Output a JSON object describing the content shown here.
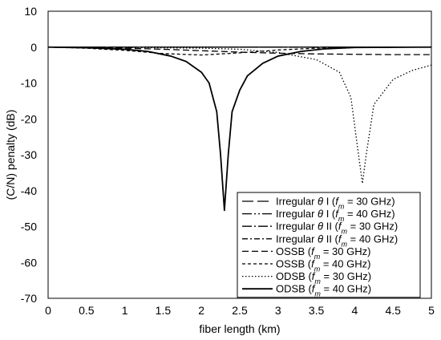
{
  "chart_data": {
    "type": "line",
    "xlabel": "fiber length (km)",
    "ylabel": "(C/N) penalty (dB)",
    "xlim": [
      0,
      5
    ],
    "ylim": [
      -70,
      10
    ],
    "xticks": [
      "0",
      "0.5",
      "1",
      "1.5",
      "2",
      "2.5",
      "3",
      "3.5",
      "4",
      "4.5",
      "5"
    ],
    "yticks": [
      "10",
      "0",
      "-10",
      "-20",
      "-30",
      "-40",
      "-50",
      "-60",
      "-70"
    ],
    "grid": false,
    "legend_position": "bottom-right",
    "series": [
      {
        "name_parts": [
          "Irregular ",
          "θ",
          " I (",
          "f",
          "m",
          " = 30 GHz)"
        ],
        "dash": "long-dash",
        "x": [
          0,
          0.5,
          1,
          1.5,
          2,
          2.5,
          3,
          3.5,
          4,
          4.5,
          5
        ],
        "y": [
          0,
          0,
          0,
          0,
          0,
          0,
          0,
          0,
          0,
          0,
          0
        ]
      },
      {
        "name_parts": [
          "Irregular ",
          "θ",
          " I (",
          "f",
          "m",
          " = 40 GHz)"
        ],
        "dash": "long-dash-dot-dot",
        "x": [
          0,
          0.5,
          1,
          1.5,
          2,
          2.5,
          3,
          3.5,
          4,
          4.5,
          5
        ],
        "y": [
          0,
          0,
          0,
          0,
          0,
          0,
          0,
          0,
          0,
          0,
          0
        ]
      },
      {
        "name_parts": [
          "Irregular ",
          "θ",
          " II (",
          "f",
          "m",
          " = 30 GHz)"
        ],
        "dash": "long-dash-dot",
        "x": [
          0,
          0.5,
          1,
          1.5,
          2,
          2.5,
          3,
          3.5,
          4,
          4.5,
          5
        ],
        "y": [
          0,
          0,
          0,
          0,
          0,
          0,
          0,
          0,
          0,
          0,
          0
        ]
      },
      {
        "name_parts": [
          "Irregular ",
          "θ",
          " II (",
          "f",
          "m",
          " = 40 GHz)"
        ],
        "dash": "dash-dot",
        "x": [
          0,
          0.5,
          1,
          1.5,
          2,
          2.5,
          3,
          3.5,
          4,
          4.5,
          5
        ],
        "y": [
          0,
          0,
          0,
          0,
          0,
          0,
          0,
          0,
          0,
          0,
          0
        ]
      },
      {
        "name_parts": [
          "OSSB (",
          "f",
          "m",
          " = 30 GHz)"
        ],
        "dash": "dash",
        "x": [
          0,
          0.5,
          1,
          1.5,
          2,
          2.5,
          3,
          3.5,
          4,
          4.5,
          5
        ],
        "y": [
          0,
          -0.1,
          -0.3,
          -0.6,
          -1.0,
          -1.4,
          -1.7,
          -1.9,
          -2.0,
          -2.1,
          -2.1
        ]
      },
      {
        "name_parts": [
          "OSSB (",
          "f",
          "m",
          " = 40 GHz)"
        ],
        "dash": "short-dash",
        "x": [
          0,
          0.5,
          1,
          1.5,
          2,
          2.5,
          3,
          3.5,
          4,
          4.5,
          5
        ],
        "y": [
          0,
          -0.3,
          -0.9,
          -1.8,
          -2.2,
          -1.6,
          -0.8,
          -0.3,
          -0.1,
          0,
          0
        ]
      },
      {
        "name_parts": [
          "ODSB (",
          "f",
          "m",
          " = 30 GHz)"
        ],
        "dash": "dot",
        "x": [
          0,
          1,
          2,
          2.5,
          3,
          3.5,
          3.8,
          3.95,
          4.05,
          4.1,
          4.15,
          4.25,
          4.5,
          4.75,
          5
        ],
        "y": [
          0,
          -0.1,
          -0.3,
          -0.6,
          -1.5,
          -3.5,
          -7,
          -14,
          -30,
          -38,
          -30,
          -16,
          -9,
          -6.5,
          -5
        ]
      },
      {
        "name_parts": [
          "ODSB (",
          "f",
          "m",
          " = 40 GHz)"
        ],
        "dash": "solid",
        "x": [
          0,
          0.5,
          1,
          1.3,
          1.6,
          1.8,
          2.0,
          2.1,
          2.2,
          2.25,
          2.3,
          2.35,
          2.4,
          2.5,
          2.6,
          2.8,
          3.0,
          3.3,
          3.6,
          4,
          5
        ],
        "y": [
          0,
          -0.2,
          -0.6,
          -1.2,
          -2.5,
          -4,
          -7,
          -10,
          -18,
          -30,
          -45.5,
          -30,
          -18,
          -12,
          -8,
          -4.5,
          -2.5,
          -1.2,
          -0.5,
          -0.1,
          0
        ]
      }
    ]
  }
}
